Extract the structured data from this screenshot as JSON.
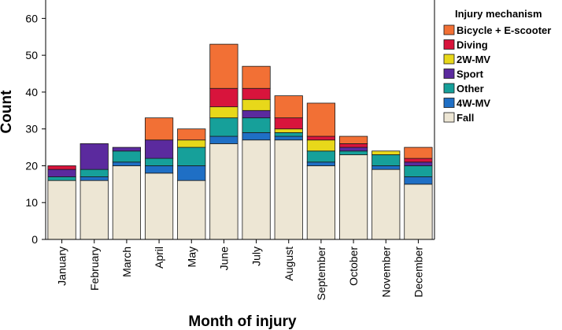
{
  "chart_data": {
    "type": "bar",
    "stacked": true,
    "title": "",
    "xlabel": "Month of injury",
    "ylabel": "Count",
    "ylim": [
      0,
      65
    ],
    "yticks": [
      0,
      10,
      20,
      30,
      40,
      50,
      60
    ],
    "grid": false,
    "legend_title": "Injury mechanism",
    "legend_position": "right",
    "categories": [
      "January",
      "February",
      "March",
      "April",
      "May",
      "June",
      "July",
      "August",
      "September",
      "October",
      "November",
      "December"
    ],
    "series": [
      {
        "name": "Fall",
        "color": "#ede6d4",
        "values": [
          16,
          16,
          20,
          18,
          16,
          26,
          27,
          27,
          20,
          23,
          19,
          15
        ]
      },
      {
        "name": "4W-MV",
        "color": "#1f6fc5",
        "values": [
          0,
          1,
          1,
          2,
          4,
          2,
          2,
          1,
          1,
          0,
          1,
          2
        ]
      },
      {
        "name": "Other",
        "color": "#16a09a",
        "values": [
          1,
          2,
          3,
          2,
          5,
          5,
          4,
          1,
          3,
          1,
          3,
          3
        ]
      },
      {
        "name": "Sport",
        "color": "#5b2a9e",
        "values": [
          2,
          7,
          1,
          5,
          0,
          0,
          2,
          0,
          0,
          1,
          0,
          1
        ]
      },
      {
        "name": "2W-MV",
        "color": "#e8d81a",
        "values": [
          0,
          0,
          0,
          0,
          2,
          3,
          3,
          1,
          3,
          0,
          1,
          0
        ]
      },
      {
        "name": "Diving",
        "color": "#d8143c",
        "values": [
          1,
          0,
          0,
          0,
          0,
          5,
          3,
          3,
          1,
          1,
          0,
          1
        ]
      },
      {
        "name": "Bicycle + E-scooter",
        "color": "#f27035",
        "values": [
          0,
          0,
          0,
          6,
          3,
          12,
          6,
          6,
          9,
          2,
          0,
          3
        ]
      }
    ],
    "legend_order": [
      "Bicycle + E-scooter",
      "Diving",
      "2W-MV",
      "Sport",
      "Other",
      "4W-MV",
      "Fall"
    ]
  }
}
